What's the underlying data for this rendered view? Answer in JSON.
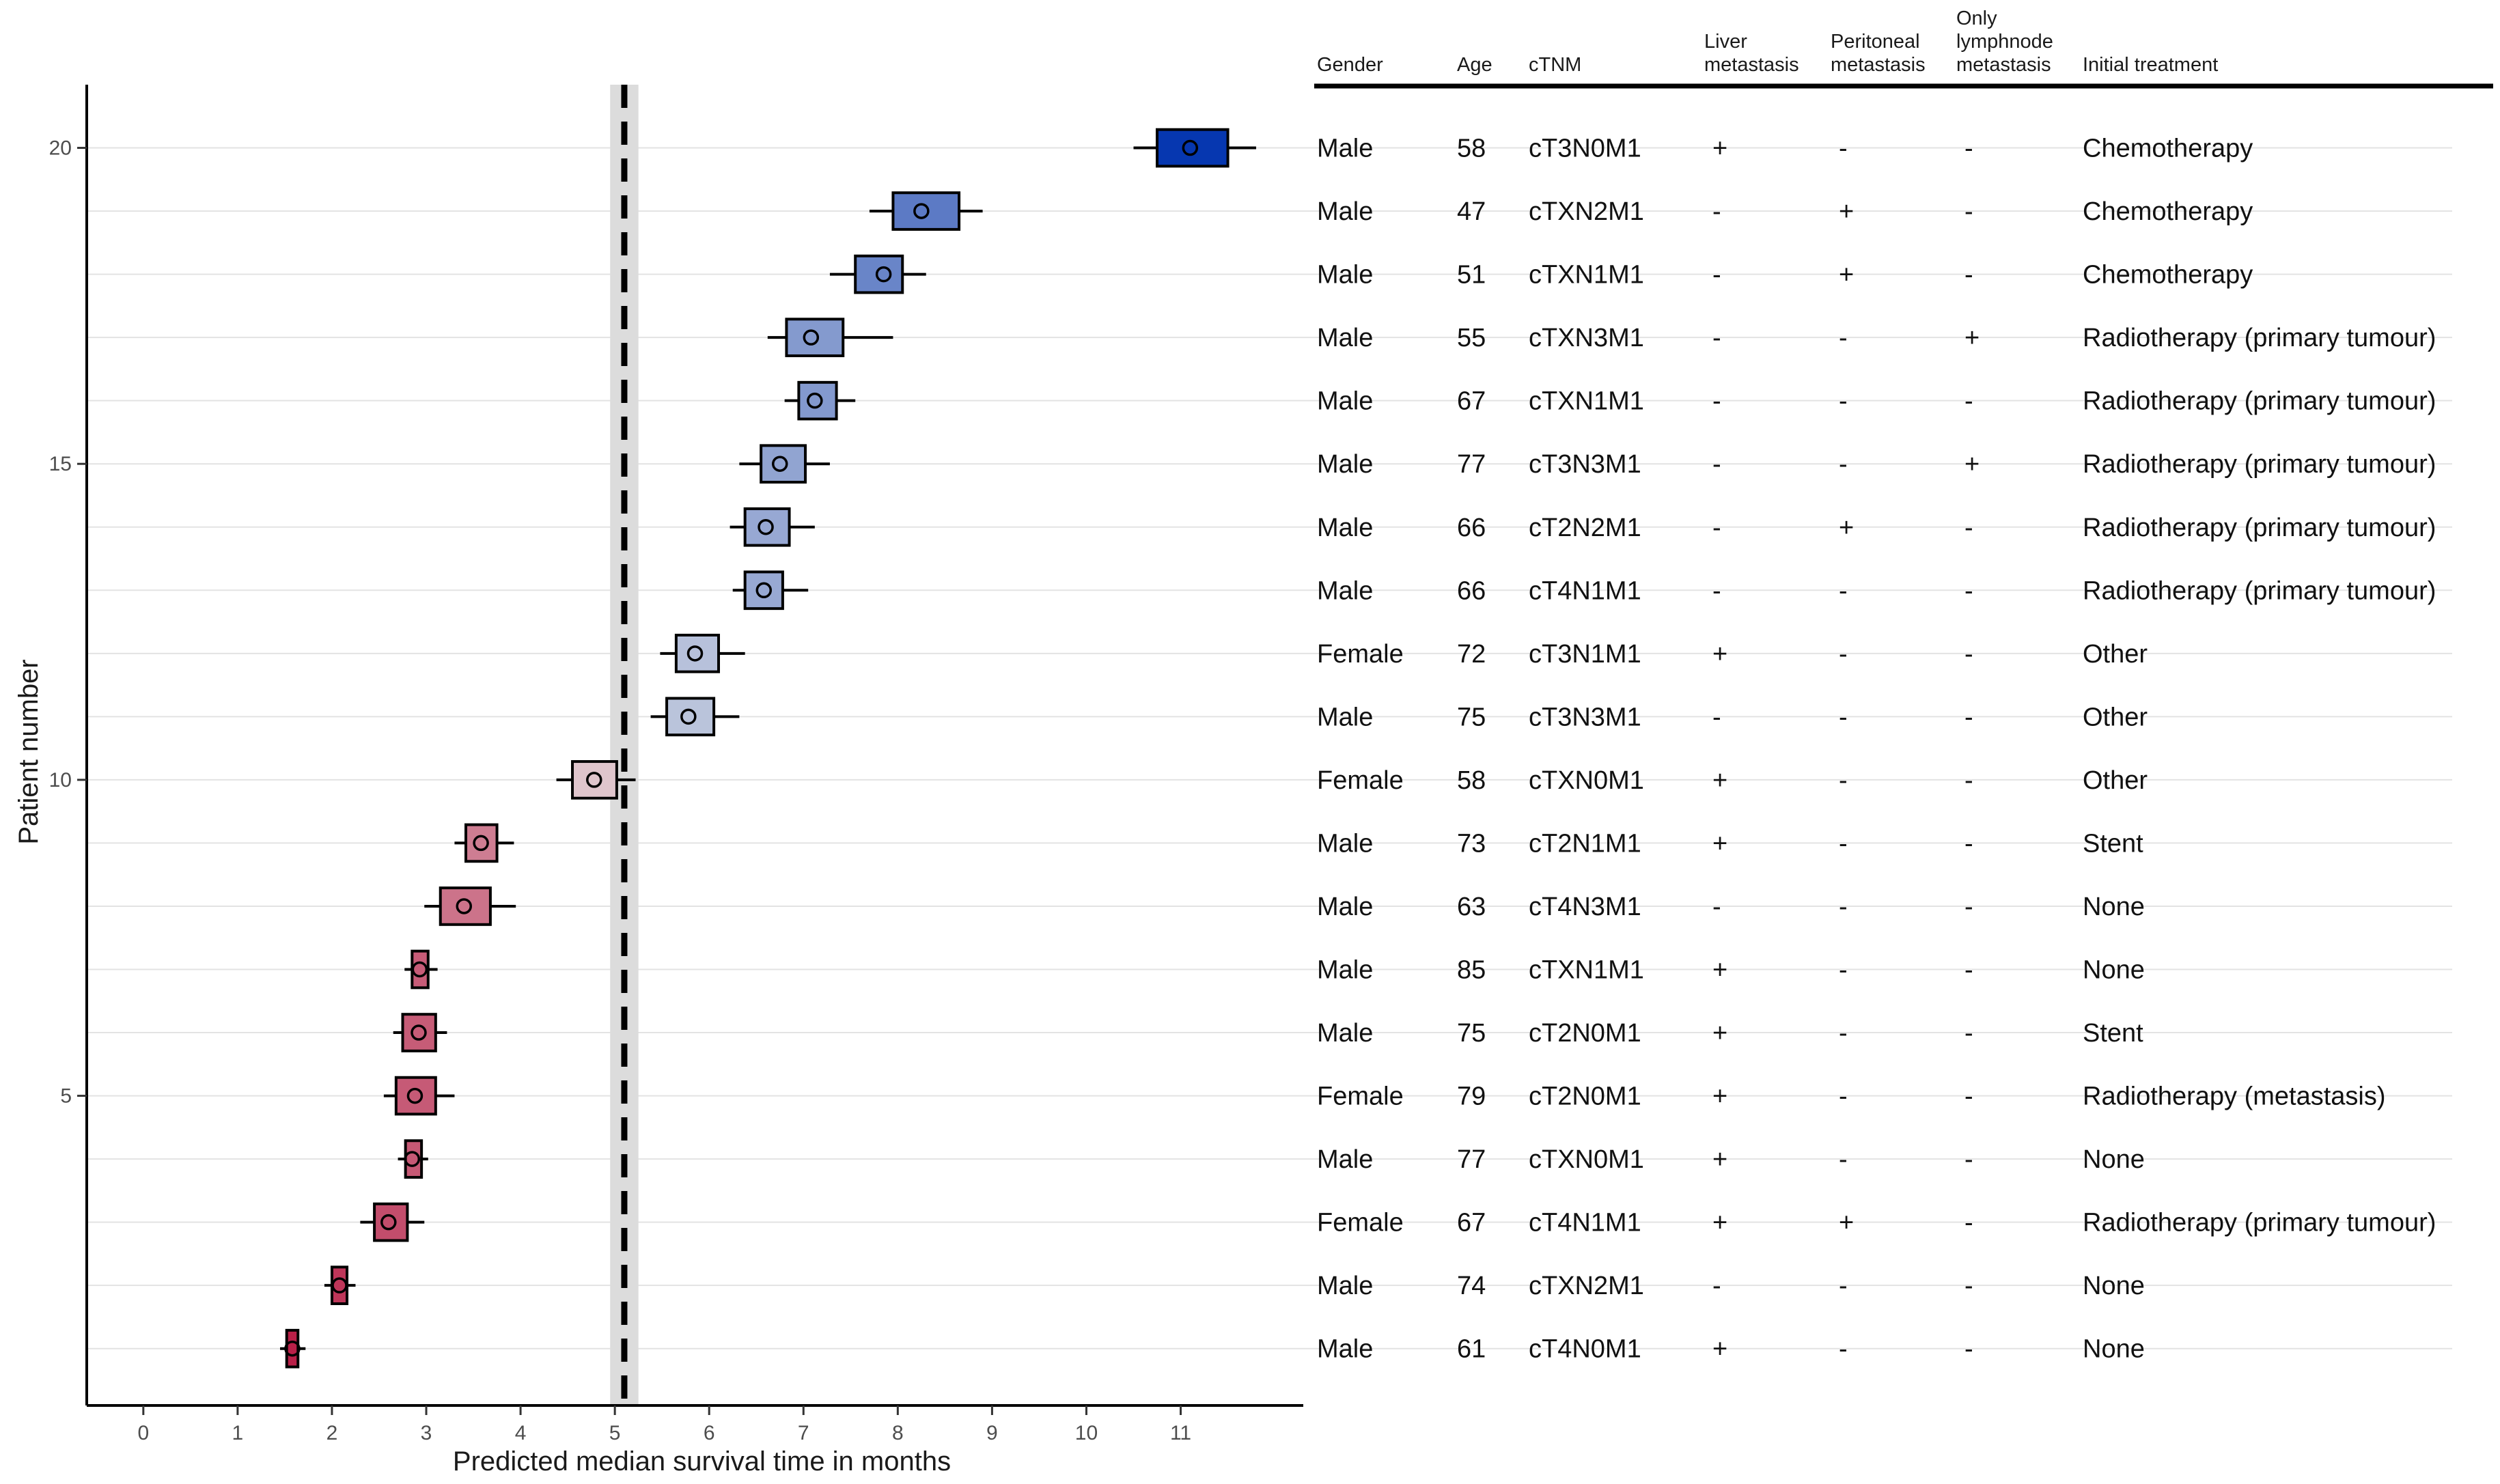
{
  "chart_data": {
    "type": "boxplot-forest",
    "xlabel": "Predicted median survival time in months",
    "ylabel": "Patient number",
    "xlim": [
      -0.6,
      12.3
    ],
    "ylim": [
      0.1,
      21
    ],
    "x_ticks": [
      0,
      1,
      2,
      3,
      4,
      5,
      6,
      7,
      8,
      9,
      10,
      11
    ],
    "y_ticks": [
      5,
      10,
      15,
      20
    ],
    "grid": "horizontal",
    "reference_line": {
      "x": 5.1,
      "band": [
        4.95,
        5.25
      ],
      "style": "dashed"
    },
    "color_low": "#b81d45",
    "color_mid": "#e6e6e6",
    "color_high": "#0637b0",
    "patients": [
      {
        "patient": 1,
        "median": 1.58,
        "q1": 1.52,
        "q3": 1.64,
        "whisker_low": 1.45,
        "whisker_high": 1.72
      },
      {
        "patient": 2,
        "median": 2.08,
        "q1": 2.0,
        "q3": 2.16,
        "whisker_low": 1.92,
        "whisker_high": 2.25
      },
      {
        "patient": 3,
        "median": 2.6,
        "q1": 2.45,
        "q3": 2.8,
        "whisker_low": 2.3,
        "whisker_high": 2.98
      },
      {
        "patient": 4,
        "median": 2.85,
        "q1": 2.78,
        "q3": 2.95,
        "whisker_low": 2.7,
        "whisker_high": 3.02
      },
      {
        "patient": 5,
        "median": 2.88,
        "q1": 2.68,
        "q3": 3.1,
        "whisker_low": 2.55,
        "whisker_high": 3.3
      },
      {
        "patient": 6,
        "median": 2.92,
        "q1": 2.75,
        "q3": 3.1,
        "whisker_low": 2.65,
        "whisker_high": 3.22
      },
      {
        "patient": 7,
        "median": 2.93,
        "q1": 2.85,
        "q3": 3.02,
        "whisker_low": 2.77,
        "whisker_high": 3.12
      },
      {
        "patient": 8,
        "median": 3.4,
        "q1": 3.15,
        "q3": 3.68,
        "whisker_low": 2.98,
        "whisker_high": 3.95
      },
      {
        "patient": 9,
        "median": 3.58,
        "q1": 3.42,
        "q3": 3.75,
        "whisker_low": 3.3,
        "whisker_high": 3.93
      },
      {
        "patient": 10,
        "median": 4.78,
        "q1": 4.55,
        "q3": 5.02,
        "whisker_low": 4.38,
        "whisker_high": 5.22
      },
      {
        "patient": 11,
        "median": 5.78,
        "q1": 5.55,
        "q3": 6.05,
        "whisker_low": 5.38,
        "whisker_high": 6.32
      },
      {
        "patient": 12,
        "median": 5.85,
        "q1": 5.65,
        "q3": 6.1,
        "whisker_low": 5.48,
        "whisker_high": 6.38
      },
      {
        "patient": 13,
        "median": 6.58,
        "q1": 6.38,
        "q3": 6.78,
        "whisker_low": 6.25,
        "whisker_high": 7.05
      },
      {
        "patient": 14,
        "median": 6.6,
        "q1": 6.38,
        "q3": 6.85,
        "whisker_low": 6.22,
        "whisker_high": 7.12
      },
      {
        "patient": 15,
        "median": 6.75,
        "q1": 6.55,
        "q3": 7.02,
        "whisker_low": 6.32,
        "whisker_high": 7.28
      },
      {
        "patient": 16,
        "median": 7.12,
        "q1": 6.95,
        "q3": 7.35,
        "whisker_low": 6.8,
        "whisker_high": 7.55
      },
      {
        "patient": 17,
        "median": 7.08,
        "q1": 6.82,
        "q3": 7.42,
        "whisker_low": 6.62,
        "whisker_high": 7.95
      },
      {
        "patient": 18,
        "median": 7.85,
        "q1": 7.55,
        "q3": 8.05,
        "whisker_low": 7.28,
        "whisker_high": 8.3
      },
      {
        "patient": 19,
        "median": 8.25,
        "q1": 7.95,
        "q3": 8.65,
        "whisker_low": 7.7,
        "whisker_high": 8.9
      },
      {
        "patient": 20,
        "median": 11.1,
        "q1": 10.75,
        "q3": 11.5,
        "whisker_low": 10.5,
        "whisker_high": 11.8
      }
    ]
  },
  "table": {
    "headers": [
      [
        "Gender"
      ],
      [
        "Age"
      ],
      [
        "cTNM"
      ],
      [
        "Liver",
        "metastasis"
      ],
      [
        "Peritoneal",
        "metastasis"
      ],
      [
        "Only",
        "lymphnode",
        "metastasis"
      ],
      [
        "Initial treatment"
      ]
    ],
    "rows": [
      {
        "patient": 20,
        "cells": [
          "Male",
          "58",
          "cT3N0M1",
          "+",
          "-",
          "-",
          "Chemotherapy"
        ]
      },
      {
        "patient": 19,
        "cells": [
          "Male",
          "47",
          "cTXN2M1",
          "-",
          "+",
          "-",
          "Chemotherapy"
        ]
      },
      {
        "patient": 18,
        "cells": [
          "Male",
          "51",
          "cTXN1M1",
          "-",
          "+",
          "-",
          "Chemotherapy"
        ]
      },
      {
        "patient": 17,
        "cells": [
          "Male",
          "55",
          "cTXN3M1",
          "-",
          "-",
          "+",
          "Radiotherapy (primary tumour)"
        ]
      },
      {
        "patient": 16,
        "cells": [
          "Male",
          "67",
          "cTXN1M1",
          "-",
          "-",
          "-",
          "Radiotherapy (primary tumour)"
        ]
      },
      {
        "patient": 15,
        "cells": [
          "Male",
          "77",
          "cT3N3M1",
          "-",
          "-",
          "+",
          "Radiotherapy (primary tumour)"
        ]
      },
      {
        "patient": 14,
        "cells": [
          "Male",
          "66",
          "cT2N2M1",
          "-",
          "+",
          "-",
          "Radiotherapy (primary tumour)"
        ]
      },
      {
        "patient": 13,
        "cells": [
          "Male",
          "66",
          "cT4N1M1",
          "-",
          "-",
          "-",
          "Radiotherapy (primary tumour)"
        ]
      },
      {
        "patient": 12,
        "cells": [
          "Female",
          "72",
          "cT3N1M1",
          "+",
          "-",
          "-",
          "Other"
        ]
      },
      {
        "patient": 11,
        "cells": [
          "Male",
          "75",
          "cT3N3M1",
          "-",
          "-",
          "-",
          "Other"
        ]
      },
      {
        "patient": 10,
        "cells": [
          "Female",
          "58",
          "cTXN0M1",
          "+",
          "-",
          "-",
          "Other"
        ]
      },
      {
        "patient": 9,
        "cells": [
          "Male",
          "73",
          "cT2N1M1",
          "+",
          "-",
          "-",
          "Stent"
        ]
      },
      {
        "patient": 8,
        "cells": [
          "Male",
          "63",
          "cT4N3M1",
          "-",
          "-",
          "-",
          "None"
        ]
      },
      {
        "patient": 7,
        "cells": [
          "Male",
          "85",
          "cTXN1M1",
          "+",
          "-",
          "-",
          "None"
        ]
      },
      {
        "patient": 6,
        "cells": [
          "Male",
          "75",
          "cT2N0M1",
          "+",
          "-",
          "-",
          "Stent"
        ]
      },
      {
        "patient": 5,
        "cells": [
          "Female",
          "79",
          "cT2N0M1",
          "+",
          "-",
          "-",
          "Radiotherapy (metastasis)"
        ]
      },
      {
        "patient": 4,
        "cells": [
          "Male",
          "77",
          "cTXN0M1",
          "+",
          "-",
          "-",
          "None"
        ]
      },
      {
        "patient": 3,
        "cells": [
          "Female",
          "67",
          "cT4N1M1",
          "+",
          "+",
          "-",
          "Radiotherapy (primary tumour)"
        ]
      },
      {
        "patient": 2,
        "cells": [
          "Male",
          "74",
          "cTXN2M1",
          "-",
          "-",
          "-",
          "None"
        ]
      },
      {
        "patient": 1,
        "cells": [
          "Male",
          "61",
          "cT4N0M1",
          "+",
          "-",
          "-",
          "None"
        ]
      }
    ]
  }
}
